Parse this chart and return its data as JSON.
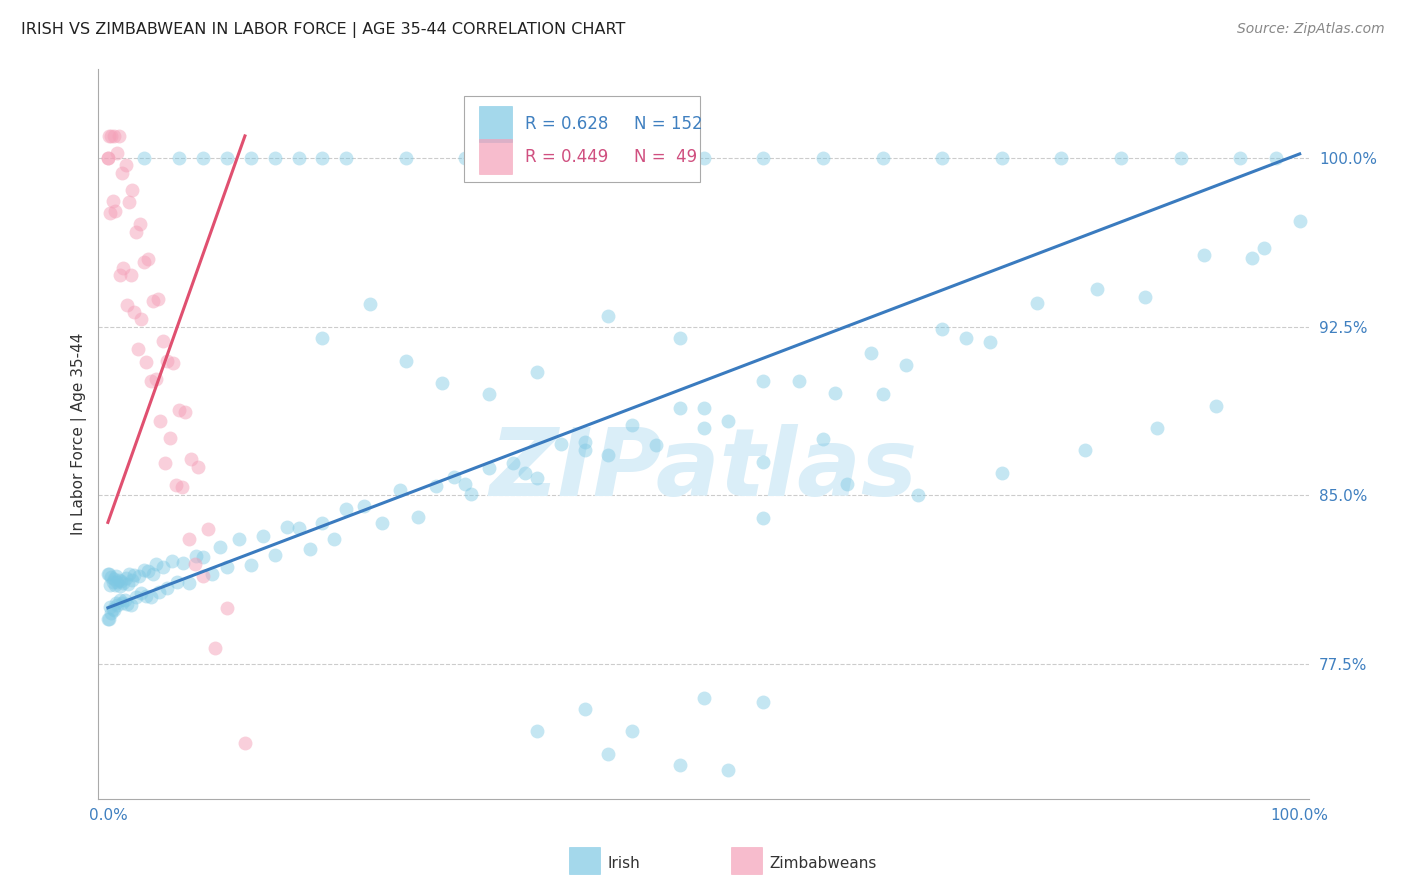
{
  "title": "IRISH VS ZIMBABWEAN IN LABOR FORCE | AGE 35-44 CORRELATION CHART",
  "source": "Source: ZipAtlas.com",
  "ylabel": "In Labor Force | Age 35-44",
  "x_min": 0.0,
  "x_max": 1.0,
  "y_min": 0.715,
  "y_max": 1.04,
  "yticks": [
    0.775,
    0.85,
    0.925,
    1.0
  ],
  "ytick_labels": [
    "77.5%",
    "85.0%",
    "92.5%",
    "100.0%"
  ],
  "xtick_labels": [
    "0.0%",
    "100.0%"
  ],
  "xticks": [
    0.0,
    1.0
  ],
  "blue_color": "#7ec8e3",
  "blue_line_color": "#3a7bbf",
  "pink_color": "#f4a0b8",
  "pink_line_color": "#e05070",
  "legend_blue_R": "R = 0.628",
  "legend_blue_N": "N = 152",
  "legend_pink_R": "R = 0.449",
  "legend_pink_N": "N =  49",
  "watermark": "ZIPatlas",
  "watermark_color": "#daeef8",
  "title_fontsize": 11.5,
  "axis_label_fontsize": 11,
  "tick_label_fontsize": 11,
  "legend_fontsize": 12,
  "source_fontsize": 10,
  "marker_size": 100,
  "blue_text_color": "#4080c0",
  "pink_text_color": "#d05080",
  "grid_color": "#cccccc",
  "bottom_legend_label1": "Irish",
  "bottom_legend_label2": "Zimbabweans"
}
